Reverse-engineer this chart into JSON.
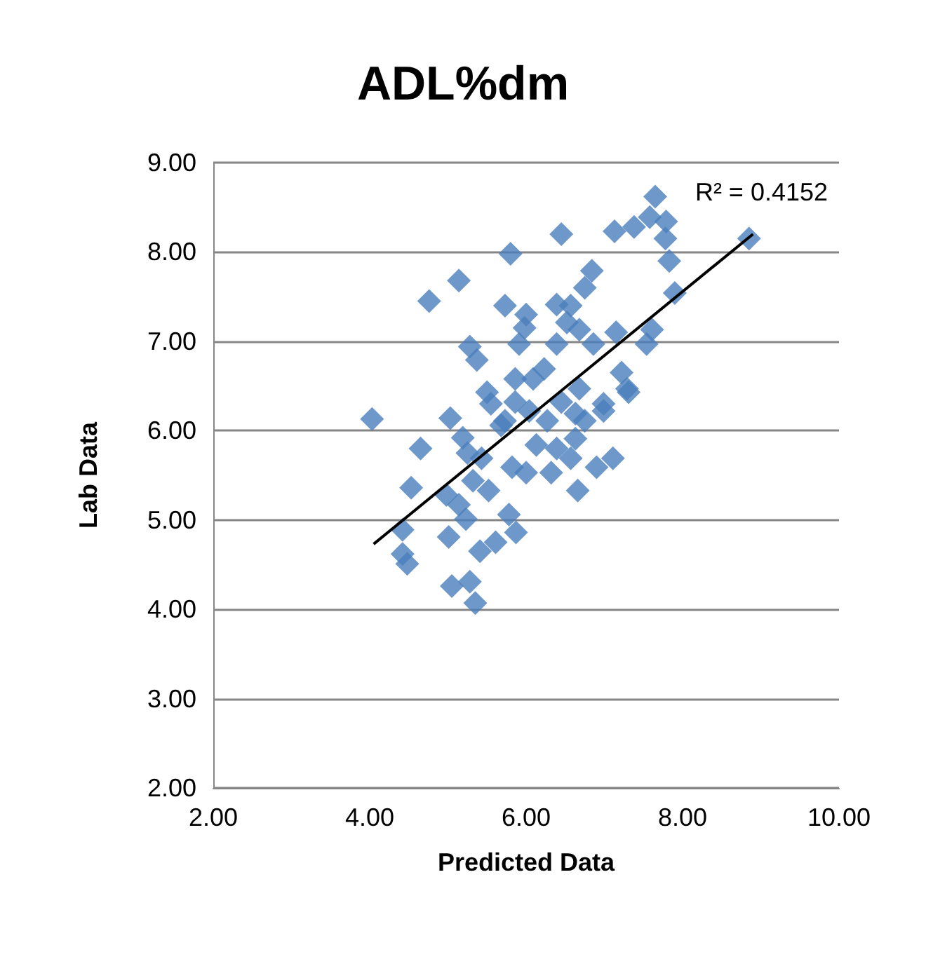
{
  "chart_data": {
    "type": "scatter",
    "title": "ADL%dm",
    "xlabel": "Predicted Data",
    "ylabel": "Lab Data",
    "annotations": [
      "R² = 0.4152"
    ],
    "xlim": [
      2,
      10
    ],
    "ylim": [
      2,
      9
    ],
    "xticks": [
      {
        "value": 2,
        "label": "2.00"
      },
      {
        "value": 4,
        "label": "4.00"
      },
      {
        "value": 6,
        "label": "6.00"
      },
      {
        "value": 8,
        "label": "8.00"
      },
      {
        "value": 10,
        "label": "10.00"
      }
    ],
    "yticks": [
      {
        "value": 2,
        "label": "2.00"
      },
      {
        "value": 3,
        "label": "3.00"
      },
      {
        "value": 4,
        "label": "4.00"
      },
      {
        "value": 5,
        "label": "5.00"
      },
      {
        "value": 6,
        "label": "6.00"
      },
      {
        "value": 7,
        "label": "7.00"
      },
      {
        "value": 8,
        "label": "8.00"
      },
      {
        "value": 9,
        "label": "9.00"
      }
    ],
    "grid": "y",
    "marker": "diamond",
    "series": [
      {
        "color": "#4a7ebb",
        "x": [
          4.03,
          4.76,
          5.14,
          5.8,
          6.45,
          7.13,
          7.38,
          7.58,
          7.65,
          7.79,
          7.78,
          7.83,
          7.9,
          8.85,
          5.73,
          6.84,
          6.75,
          6.39,
          6.57,
          6,
          5.98,
          5.91,
          6.52,
          6.39,
          6.68,
          6.86,
          7.15,
          7.61,
          7.54,
          5.28,
          5.37,
          7.22,
          7.29,
          5.5,
          5.86,
          6.23,
          6.68,
          6.99,
          5.03,
          4.65,
          4.53,
          4.98,
          4.42,
          4.42,
          4.48,
          5.01,
          5.05,
          5.28,
          5.35,
          5.41,
          5.78,
          5.87,
          5.61,
          5.23,
          5.32,
          5.14,
          5.52,
          5.25,
          5.43,
          5.19,
          5.68,
          5.55,
          5.82,
          6,
          6.13,
          6.27,
          6.04,
          6.39,
          6.32,
          6.57,
          6.63,
          6.75,
          6.9,
          7.11,
          6.99,
          6.66,
          5.86,
          6.45,
          7.31,
          5.73,
          6.09,
          6.63
        ],
        "values": [
          6.13,
          7.45,
          7.68,
          7.98,
          8.2,
          8.23,
          8.28,
          8.39,
          8.62,
          8.34,
          8.15,
          7.9,
          7.54,
          8.15,
          7.4,
          7.79,
          7.6,
          7.41,
          7.4,
          7.3,
          7.15,
          6.97,
          7.21,
          6.97,
          7.13,
          6.97,
          7.1,
          7.13,
          6.97,
          6.94,
          6.79,
          6.65,
          6.47,
          6.43,
          6.58,
          6.69,
          6.47,
          6.3,
          6.14,
          5.8,
          5.36,
          5.28,
          4.89,
          4.62,
          4.51,
          4.81,
          4.26,
          4.31,
          4.07,
          4.65,
          5.06,
          4.86,
          4.75,
          5.01,
          5.44,
          5.17,
          5.33,
          5.75,
          5.69,
          5.92,
          6.06,
          6.3,
          5.59,
          5.53,
          5.84,
          6.11,
          6.22,
          5.8,
          5.53,
          5.69,
          5.91,
          6.11,
          5.59,
          5.69,
          6.22,
          5.33,
          6.32,
          6.32,
          6.43,
          6.11,
          6.58,
          6.19
        ]
      },
      {
        "type": "line",
        "color": "#000000",
        "marker": "none",
        "x": [
          4.05,
          8.9
        ],
        "values": [
          4.73,
          8.2
        ]
      }
    ]
  }
}
